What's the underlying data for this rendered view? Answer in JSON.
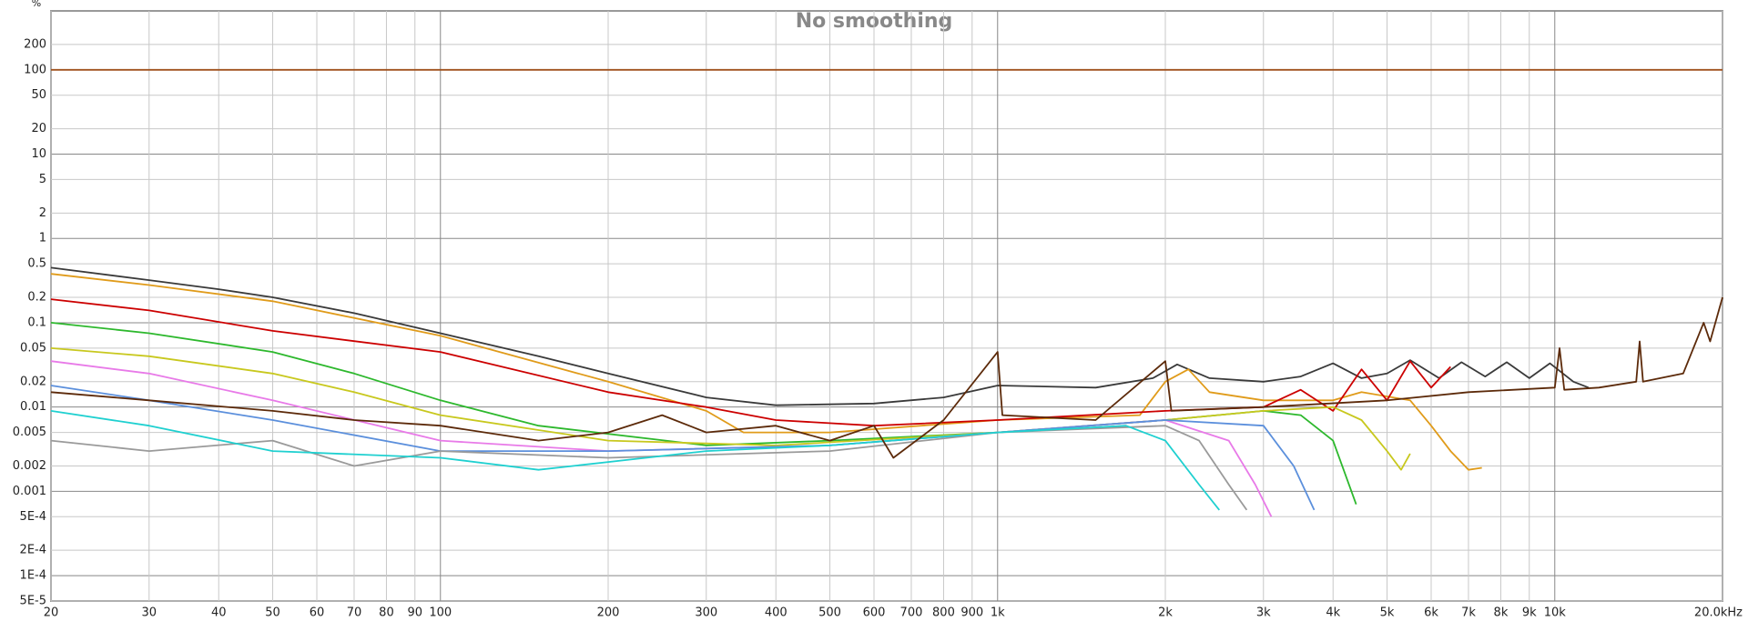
{
  "chart_data": {
    "type": "line",
    "title": "No smoothing",
    "y_unit": "%",
    "xscale": "log",
    "yscale": "log",
    "grid": true,
    "xlim": [
      20,
      20000
    ],
    "ylim": [
      5e-05,
      500
    ],
    "xticks": [
      20,
      30,
      40,
      50,
      60,
      70,
      80,
      90,
      100,
      200,
      300,
      400,
      500,
      600,
      700,
      800,
      900,
      {
        "value": 1000,
        "label": "1k"
      },
      {
        "value": 2000,
        "label": "2k"
      },
      {
        "value": 3000,
        "label": "3k"
      },
      {
        "value": 4000,
        "label": "4k"
      },
      {
        "value": 5000,
        "label": "5k"
      },
      {
        "value": 6000,
        "label": "6k"
      },
      {
        "value": 7000,
        "label": "7k"
      },
      {
        "value": 8000,
        "label": "8k"
      },
      {
        "value": 9000,
        "label": "9k"
      },
      {
        "value": 10000,
        "label": "10k"
      },
      {
        "value": 20000,
        "label": "20.0kHz"
      }
    ],
    "yticks": [
      {
        "value": 5e-05,
        "label": "5E-5"
      },
      {
        "value": 0.0001,
        "label": "1E-4"
      },
      {
        "value": 0.0002,
        "label": "2E-4"
      },
      {
        "value": 0.0005,
        "label": "5E-4"
      },
      0.001,
      0.002,
      0.005,
      0.01,
      0.02,
      0.05,
      0.1,
      0.2,
      0.5,
      1,
      2,
      5,
      10,
      20,
      50,
      100,
      200
    ],
    "series": [
      {
        "color": "#a0521e",
        "x": [
          20,
          20000
        ],
        "values": [
          100,
          100
        ]
      },
      {
        "color": "#3a3a3a",
        "x": [
          20,
          30,
          40,
          50,
          70,
          100,
          150,
          200,
          300,
          400,
          600,
          800,
          1000,
          1500,
          1900,
          2100,
          2400,
          3000,
          3500,
          4000,
          4500,
          5000,
          5500,
          6200,
          6800,
          7500,
          8200,
          9000,
          9800,
          10800,
          11500
        ],
        "values": [
          0.45,
          0.32,
          0.25,
          0.2,
          0.13,
          0.075,
          0.04,
          0.025,
          0.013,
          0.0105,
          0.011,
          0.013,
          0.018,
          0.017,
          0.022,
          0.032,
          0.022,
          0.02,
          0.023,
          0.033,
          0.022,
          0.025,
          0.036,
          0.022,
          0.034,
          0.023,
          0.034,
          0.022,
          0.033,
          0.02,
          0.017
        ]
      },
      {
        "color": "#e09b1a",
        "x": [
          20,
          30,
          50,
          100,
          200,
          300,
          350,
          500,
          1000,
          1800,
          2000,
          2200,
          2400,
          3000,
          4000,
          4500,
          5500,
          6000,
          6500,
          7000,
          7400
        ],
        "values": [
          0.38,
          0.28,
          0.18,
          0.07,
          0.02,
          0.009,
          0.005,
          0.005,
          0.007,
          0.008,
          0.02,
          0.028,
          0.015,
          0.012,
          0.012,
          0.015,
          0.012,
          0.006,
          0.003,
          0.0018,
          0.0019
        ]
      },
      {
        "color": "#cc0000",
        "x": [
          20,
          30,
          50,
          100,
          200,
          300,
          400,
          600,
          1000,
          2000,
          3000,
          3500,
          4000,
          4500,
          5000,
          5500,
          6000,
          6500
        ],
        "values": [
          0.19,
          0.14,
          0.08,
          0.045,
          0.015,
          0.01,
          0.007,
          0.006,
          0.007,
          0.009,
          0.01,
          0.016,
          0.009,
          0.028,
          0.012,
          0.035,
          0.017,
          0.03
        ]
      },
      {
        "color": "#2db82d",
        "x": [
          20,
          30,
          50,
          70,
          100,
          150,
          300,
          500,
          1000,
          2000,
          3000,
          3500,
          4000,
          4400
        ],
        "values": [
          0.1,
          0.075,
          0.045,
          0.025,
          0.012,
          0.006,
          0.0035,
          0.004,
          0.005,
          0.007,
          0.009,
          0.008,
          0.004,
          0.0007
        ]
      },
      {
        "color": "#c8c81e",
        "x": [
          20,
          30,
          50,
          70,
          100,
          200,
          400,
          1000,
          2000,
          3000,
          4000,
          4500,
          5000,
          5300,
          5500
        ],
        "values": [
          0.05,
          0.04,
          0.025,
          0.015,
          0.008,
          0.004,
          0.0035,
          0.005,
          0.007,
          0.009,
          0.01,
          0.007,
          0.003,
          0.0018,
          0.0028
        ]
      },
      {
        "color": "#e87ae8",
        "x": [
          20,
          30,
          50,
          100,
          200,
          500,
          1000,
          2000,
          2600,
          2900,
          3100
        ],
        "values": [
          0.035,
          0.025,
          0.012,
          0.004,
          0.003,
          0.0035,
          0.005,
          0.007,
          0.004,
          0.0012,
          0.0005
        ]
      },
      {
        "color": "#5b8fdc",
        "x": [
          20,
          30,
          50,
          100,
          200,
          500,
          1000,
          2000,
          3000,
          3400,
          3700
        ],
        "values": [
          0.018,
          0.012,
          0.007,
          0.003,
          0.003,
          0.0035,
          0.005,
          0.007,
          0.006,
          0.002,
          0.0006
        ]
      },
      {
        "color": "#9a9a9a",
        "x": [
          20,
          30,
          50,
          70,
          100,
          200,
          500,
          1000,
          2000,
          2300,
          2600,
          2800
        ],
        "values": [
          0.004,
          0.003,
          0.004,
          0.002,
          0.003,
          0.0025,
          0.003,
          0.005,
          0.006,
          0.004,
          0.0012,
          0.0006
        ]
      },
      {
        "color": "#1fd0d0",
        "x": [
          20,
          30,
          50,
          100,
          150,
          300,
          500,
          1000,
          1700,
          2000,
          2300,
          2500
        ],
        "values": [
          0.009,
          0.006,
          0.003,
          0.0025,
          0.0018,
          0.003,
          0.0035,
          0.005,
          0.006,
          0.004,
          0.0012,
          0.0006
        ]
      },
      {
        "color": "#5c2a0a",
        "x": [
          20,
          30,
          50,
          70,
          100,
          150,
          200,
          250,
          300,
          400,
          500,
          600,
          650,
          800,
          1000,
          1020,
          1500,
          2000,
          2050,
          3000,
          5000,
          7000,
          10000,
          10200,
          10400,
          12000,
          14000,
          14200,
          14400,
          17000,
          18500,
          19000,
          20000
        ],
        "values": [
          0.015,
          0.012,
          0.009,
          0.007,
          0.006,
          0.004,
          0.005,
          0.008,
          0.005,
          0.006,
          0.004,
          0.006,
          0.0025,
          0.007,
          0.045,
          0.008,
          0.007,
          0.035,
          0.009,
          0.01,
          0.012,
          0.015,
          0.017,
          0.05,
          0.016,
          0.017,
          0.02,
          0.06,
          0.02,
          0.025,
          0.1,
          0.06,
          0.2
        ]
      }
    ]
  }
}
